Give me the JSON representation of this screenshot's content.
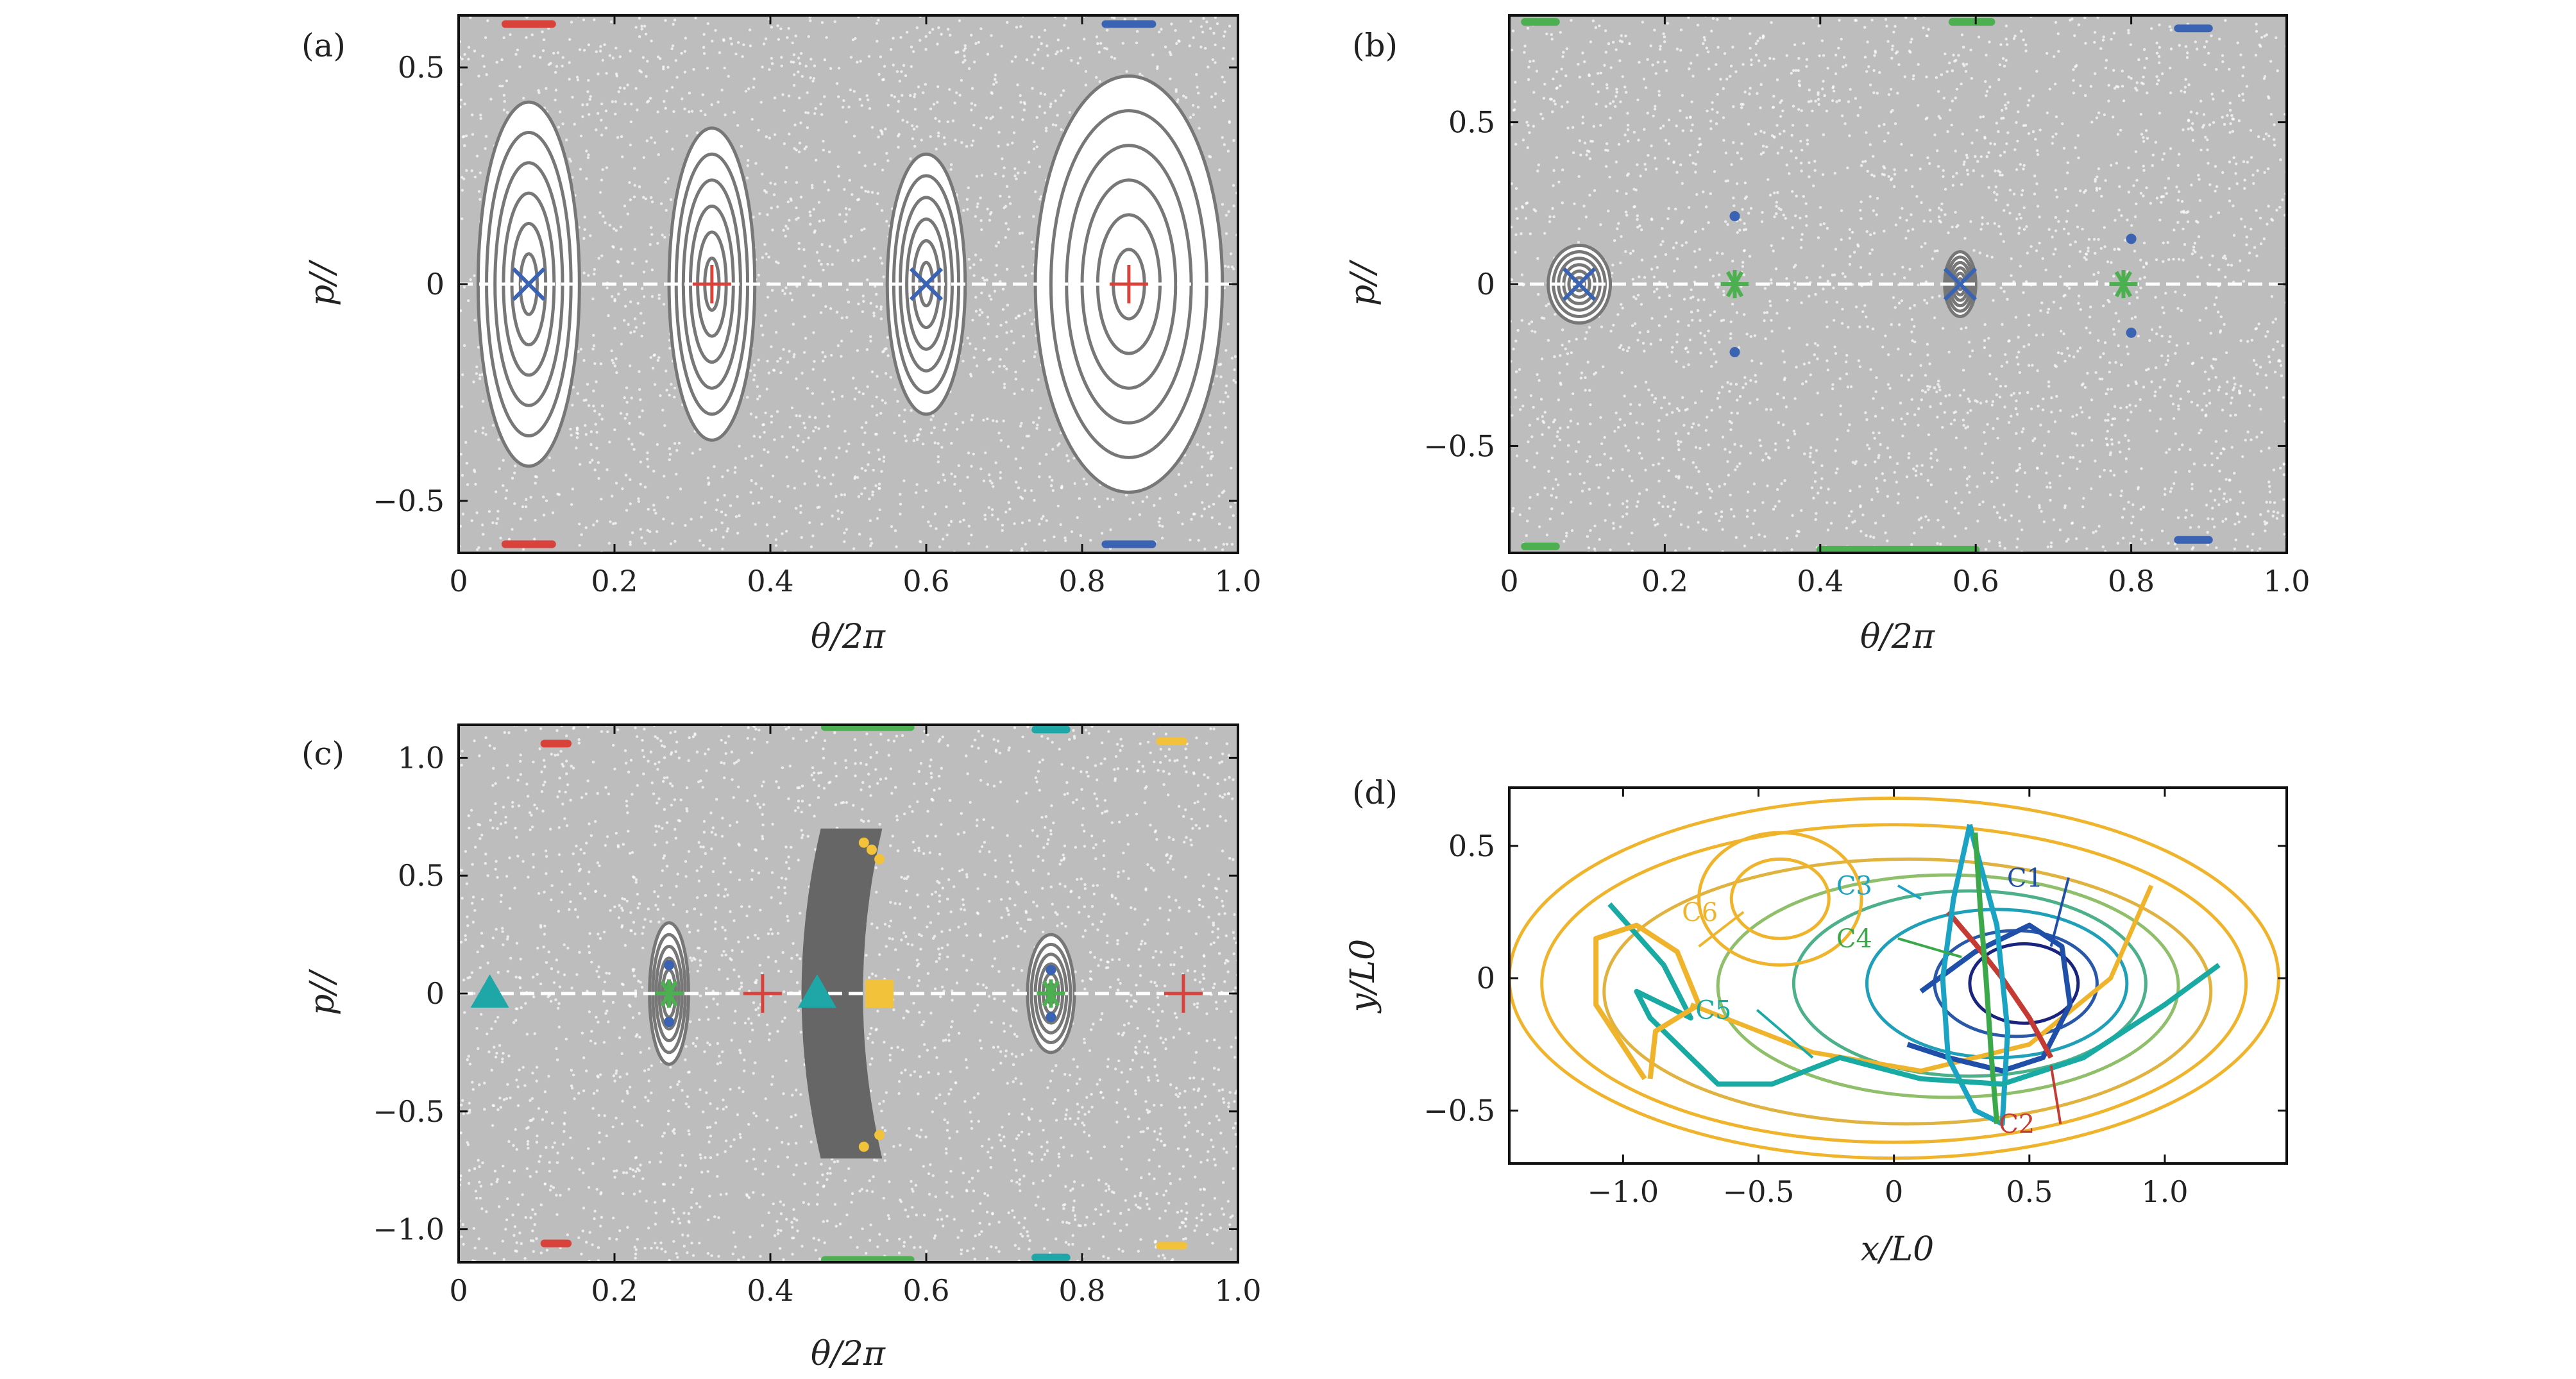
{
  "colors": {
    "background": "#ffffff",
    "scatter_gray": "#777777",
    "axis": "#111111",
    "blue": "#3a63b4",
    "red": "#d9423a",
    "green": "#4caf50",
    "teal": "#1fa7a8",
    "yellow": "#f2c23b",
    "c1": "#1f4fa8",
    "c2": "#c53a32",
    "c3": "#1aa3c2",
    "c4": "#3ba84a",
    "c5": "#1aaaa4",
    "c6": "#f0b42c"
  },
  "chart_data": [
    {
      "id": "a",
      "type": "scatter",
      "panel_label": "(a)",
      "xlabel": "θ/2π",
      "ylabel": "p//",
      "xlim": [
        0,
        1.0
      ],
      "ylim": [
        -0.62,
        0.62
      ],
      "xticks": [
        "0",
        "0.2",
        "0.4",
        "0.6",
        "0.8",
        "1.0"
      ],
      "xtick_values": [
        0,
        0.2,
        0.4,
        0.6,
        0.8,
        1.0
      ],
      "yticks": [
        "−0.5",
        "0",
        "0.5"
      ],
      "ytick_values": [
        -0.5,
        0,
        0.5
      ],
      "islands": [
        {
          "x": 0.09,
          "rx": 0.065,
          "ry": 0.42
        },
        {
          "x": 0.325,
          "rx": 0.055,
          "ry": 0.36
        },
        {
          "x": 0.6,
          "rx": 0.05,
          "ry": 0.3
        },
        {
          "x": 0.86,
          "rx": 0.12,
          "ry": 0.48
        }
      ],
      "markers": [
        {
          "shape": "x",
          "color": "blue",
          "x": 0.09,
          "y": 0
        },
        {
          "shape": "plus",
          "color": "red",
          "x": 0.325,
          "y": 0
        },
        {
          "shape": "x",
          "color": "blue",
          "x": 0.6,
          "y": 0
        },
        {
          "shape": "plus",
          "color": "red",
          "x": 0.86,
          "y": 0
        }
      ],
      "edge_marks": [
        {
          "color": "red",
          "x": [
            0.06,
            0.12
          ],
          "y": 0.6
        },
        {
          "color": "red",
          "x": [
            0.06,
            0.12
          ],
          "y": -0.6
        },
        {
          "color": "blue",
          "x": [
            0.83,
            0.89
          ],
          "y": 0.6
        },
        {
          "color": "blue",
          "x": [
            0.83,
            0.89
          ],
          "y": -0.6
        }
      ]
    },
    {
      "id": "b",
      "type": "scatter",
      "panel_label": "(b)",
      "xlabel": "θ/2π",
      "ylabel": "p//",
      "xlim": [
        0,
        1.0
      ],
      "ylim": [
        -0.83,
        0.83
      ],
      "xticks": [
        "0",
        "0.2",
        "0.4",
        "0.6",
        "0.8",
        "1.0"
      ],
      "xtick_values": [
        0,
        0.2,
        0.4,
        0.6,
        0.8,
        1.0
      ],
      "yticks": [
        "−0.5",
        "0",
        "0.5"
      ],
      "ytick_values": [
        -0.5,
        0,
        0.5
      ],
      "islands": [
        {
          "x": 0.09,
          "rx": 0.04,
          "ry": 0.12
        },
        {
          "x": 0.58,
          "rx": 0.02,
          "ry": 0.1
        }
      ],
      "markers": [
        {
          "shape": "x",
          "color": "blue",
          "x": 0.09,
          "y": 0
        },
        {
          "shape": "star",
          "color": "green",
          "x": 0.29,
          "y": 0
        },
        {
          "shape": "x",
          "color": "blue",
          "x": 0.58,
          "y": 0
        },
        {
          "shape": "star",
          "color": "green",
          "x": 0.79,
          "y": 0
        },
        {
          "shape": "dot",
          "color": "blue",
          "x": 0.29,
          "y": 0.21
        },
        {
          "shape": "dot",
          "color": "blue",
          "x": 0.29,
          "y": -0.21
        },
        {
          "shape": "dot",
          "color": "blue",
          "x": 0.8,
          "y": 0.14
        },
        {
          "shape": "dot",
          "color": "blue",
          "x": 0.8,
          "y": -0.15
        }
      ],
      "edge_marks": [
        {
          "color": "green",
          "x": [
            0.02,
            0.06
          ],
          "y": 0.81
        },
        {
          "color": "green",
          "x": [
            0.02,
            0.06
          ],
          "y": -0.81
        },
        {
          "color": "green",
          "x": [
            0.57,
            0.62
          ],
          "y": 0.81
        },
        {
          "color": "green",
          "x": [
            0.4,
            0.6
          ],
          "y": -0.82
        },
        {
          "color": "blue",
          "x": [
            0.86,
            0.9
          ],
          "y": 0.79
        },
        {
          "color": "blue",
          "x": [
            0.86,
            0.9
          ],
          "y": -0.79
        }
      ]
    },
    {
      "id": "c",
      "type": "scatter",
      "panel_label": "(c)",
      "xlabel": "θ/2π",
      "ylabel": "p//",
      "xlim": [
        0,
        1.0
      ],
      "ylim": [
        -1.14,
        1.14
      ],
      "xticks": [
        "0",
        "0.2",
        "0.4",
        "0.6",
        "0.8",
        "1.0"
      ],
      "xtick_values": [
        0,
        0.2,
        0.4,
        0.6,
        0.8,
        1.0
      ],
      "yticks": [
        "−1.0",
        "−0.5",
        "0",
        "0.5",
        "1.0"
      ],
      "ytick_values": [
        -1.0,
        -0.5,
        0,
        0.5,
        1.0
      ],
      "islands": [
        {
          "x": 0.27,
          "rx": 0.025,
          "ry": 0.3
        },
        {
          "x": 0.76,
          "rx": 0.03,
          "ry": 0.25
        }
      ],
      "dense_band": {
        "x_center": 0.5,
        "width": 0.12,
        "ylim": [
          -0.7,
          0.7
        ]
      },
      "markers": [
        {
          "shape": "triangle",
          "color": "teal",
          "x": 0.04,
          "y": 0
        },
        {
          "shape": "star",
          "color": "green",
          "x": 0.27,
          "y": 0
        },
        {
          "shape": "plus",
          "color": "red",
          "x": 0.39,
          "y": 0
        },
        {
          "shape": "triangle",
          "color": "teal",
          "x": 0.46,
          "y": 0
        },
        {
          "shape": "square",
          "color": "yellow",
          "x": 0.54,
          "y": 0
        },
        {
          "shape": "star",
          "color": "green",
          "x": 0.76,
          "y": 0
        },
        {
          "shape": "plus",
          "color": "red",
          "x": 0.93,
          "y": 0
        },
        {
          "shape": "dot",
          "color": "blue",
          "x": 0.27,
          "y": 0.12
        },
        {
          "shape": "dot",
          "color": "blue",
          "x": 0.27,
          "y": -0.12
        },
        {
          "shape": "dot",
          "color": "blue",
          "x": 0.76,
          "y": 0.1
        },
        {
          "shape": "dot",
          "color": "blue",
          "x": 0.76,
          "y": -0.1
        },
        {
          "shape": "dot",
          "color": "yellow",
          "x": 0.52,
          "y": 0.64
        },
        {
          "shape": "dot",
          "color": "yellow",
          "x": 0.53,
          "y": 0.61
        },
        {
          "shape": "dot",
          "color": "yellow",
          "x": 0.54,
          "y": 0.57
        },
        {
          "shape": "dot",
          "color": "yellow",
          "x": 0.52,
          "y": -0.65
        },
        {
          "shape": "dot",
          "color": "yellow",
          "x": 0.54,
          "y": -0.6
        }
      ],
      "edge_marks": [
        {
          "color": "red",
          "x": [
            0.11,
            0.14
          ],
          "y": 1.06
        },
        {
          "color": "red",
          "x": [
            0.11,
            0.14
          ],
          "y": -1.06
        },
        {
          "color": "green",
          "x": [
            0.47,
            0.58
          ],
          "y": 1.13
        },
        {
          "color": "green",
          "x": [
            0.47,
            0.58
          ],
          "y": -1.13
        },
        {
          "color": "teal",
          "x": [
            0.74,
            0.78
          ],
          "y": 1.12
        },
        {
          "color": "teal",
          "x": [
            0.74,
            0.78
          ],
          "y": -1.12
        },
        {
          "color": "yellow",
          "x": [
            0.9,
            0.93
          ],
          "y": 1.07
        },
        {
          "color": "yellow",
          "x": [
            0.9,
            0.93
          ],
          "y": -1.07
        }
      ]
    },
    {
      "id": "d",
      "type": "line",
      "panel_label": "(d)",
      "xlabel": "x/L0",
      "ylabel": "y/L0",
      "xlim": [
        -1.42,
        1.45
      ],
      "ylim": [
        -0.7,
        0.72
      ],
      "xticks": [
        "−1.0",
        "−0.5",
        "0",
        "0.5",
        "1.0"
      ],
      "xtick_values": [
        -1.0,
        -0.5,
        0,
        0.5,
        1.0
      ],
      "yticks": [
        "−0.5",
        "0",
        "0.5"
      ],
      "ytick_values": [
        -0.5,
        0,
        0.5
      ],
      "contours": [
        {
          "color": "#f0b42c",
          "cx": 0.0,
          "cy": 0.0,
          "rx": 1.42,
          "ry": 0.68
        },
        {
          "color": "#f0b42c",
          "cx": 0.0,
          "cy": -0.02,
          "rx": 1.3,
          "ry": 0.6
        },
        {
          "color": "#e0b240",
          "cx": 0.05,
          "cy": -0.05,
          "rx": 1.12,
          "ry": 0.5
        },
        {
          "color": "#8fbf6a",
          "cx": 0.2,
          "cy": -0.03,
          "rx": 0.85,
          "ry": 0.42
        },
        {
          "color": "#4cb08a",
          "cx": 0.28,
          "cy": -0.02,
          "rx": 0.65,
          "ry": 0.35
        },
        {
          "color": "#1fa0b8",
          "cx": 0.38,
          "cy": -0.02,
          "rx": 0.48,
          "ry": 0.28
        },
        {
          "color": "#2a58a8",
          "cx": 0.45,
          "cy": -0.02,
          "rx": 0.3,
          "ry": 0.2
        },
        {
          "color": "#1a237e",
          "cx": 0.48,
          "cy": -0.02,
          "rx": 0.2,
          "ry": 0.15
        },
        {
          "color": "#f0b42c",
          "cx": -0.42,
          "cy": 0.3,
          "rx": 0.18,
          "ry": 0.15
        },
        {
          "color": "#f0b42c",
          "cx": -0.42,
          "cy": 0.3,
          "rx": 0.3,
          "ry": 0.25
        }
      ],
      "series": [
        {
          "name": "C1",
          "color": "#1f4fa8",
          "x": [
            0.05,
            0.2,
            0.4,
            0.55,
            0.65,
            0.62,
            0.5,
            0.3,
            0.1
          ],
          "y": [
            -0.25,
            -0.3,
            -0.35,
            -0.3,
            -0.1,
            0.12,
            0.2,
            0.1,
            -0.05
          ]
        },
        {
          "name": "C2",
          "color": "#c53a32",
          "x": [
            0.2,
            0.3,
            0.4,
            0.5,
            0.58
          ],
          "y": [
            0.25,
            0.13,
            0.0,
            -0.15,
            -0.3
          ]
        },
        {
          "name": "C3",
          "color": "#1aa3c2",
          "x": [
            0.28,
            0.22,
            0.18,
            0.2,
            0.3,
            0.4,
            0.42,
            0.38,
            0.3,
            0.28
          ],
          "y": [
            0.58,
            0.3,
            0.0,
            -0.3,
            -0.5,
            -0.55,
            -0.2,
            0.2,
            0.5,
            0.58
          ]
        },
        {
          "name": "C4",
          "color": "#3ba84a",
          "x": [
            0.3,
            0.32,
            0.34,
            0.36,
            0.38
          ],
          "y": [
            0.55,
            0.25,
            0.0,
            -0.3,
            -0.55
          ]
        },
        {
          "name": "C5",
          "color": "#1aaaa4",
          "x": [
            -1.05,
            -0.85,
            -0.75,
            -0.95,
            -0.9,
            -0.65,
            -0.45,
            -0.2,
            0.1,
            0.4,
            0.7,
            1.0,
            1.2
          ],
          "y": [
            0.28,
            0.05,
            -0.15,
            -0.05,
            -0.15,
            -0.4,
            -0.4,
            -0.3,
            -0.38,
            -0.4,
            -0.3,
            -0.1,
            0.05
          ]
        },
        {
          "name": "C6",
          "color": "#f0b42c",
          "x": [
            -0.92,
            -1.1,
            -1.1,
            -0.95,
            -0.8,
            -0.72,
            -0.88,
            -0.9
          ],
          "y": [
            -0.38,
            -0.1,
            0.15,
            0.2,
            0.1,
            -0.1,
            -0.2,
            -0.38
          ]
        }
      ],
      "extra_curve": {
        "color": "#f0b42c",
        "x": [
          -0.75,
          -0.3,
          0.1,
          0.5,
          0.8,
          0.95
        ],
        "y": [
          -0.1,
          -0.28,
          -0.35,
          -0.25,
          0.0,
          0.35
        ]
      },
      "labels": [
        {
          "text": "C1",
          "x": 0.55,
          "y": 0.38,
          "tx": 0.58,
          "ty": 0.12
        },
        {
          "text": "C2",
          "x": 0.52,
          "y": -0.55,
          "tx": 0.58,
          "ty": -0.33
        },
        {
          "text": "C3",
          "x": -0.08,
          "y": 0.35,
          "tx": 0.1,
          "ty": 0.3
        },
        {
          "text": "C4",
          "x": -0.08,
          "y": 0.15,
          "tx": 0.25,
          "ty": 0.08
        },
        {
          "text": "C5",
          "x": -0.6,
          "y": -0.12,
          "tx": -0.3,
          "ty": -0.3
        },
        {
          "text": "C6",
          "x": -0.65,
          "y": 0.25,
          "tx": -0.72,
          "ty": 0.12
        }
      ]
    }
  ]
}
